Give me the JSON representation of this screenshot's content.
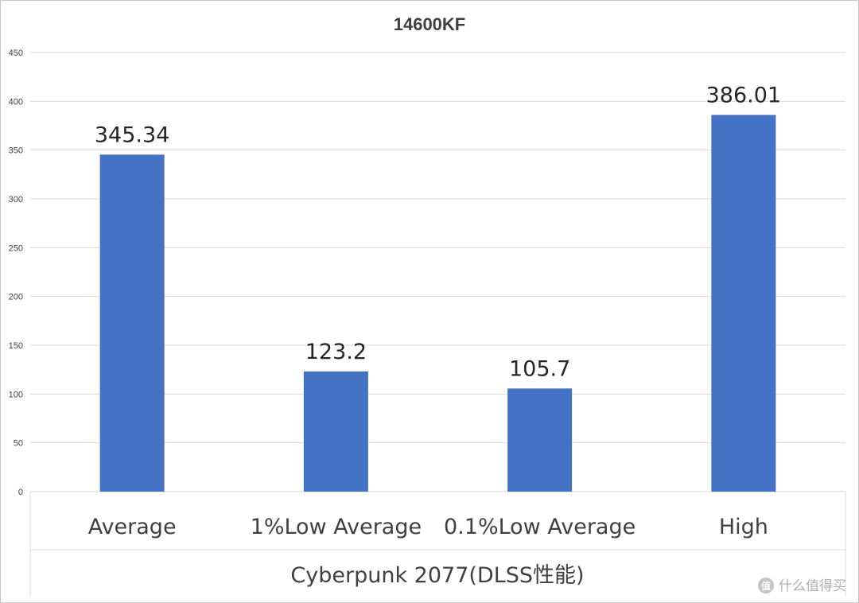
{
  "chart_data": {
    "type": "bar",
    "title": "14600KF",
    "categories": [
      "Average",
      "1%Low Average",
      "0.1%Low Average",
      "High"
    ],
    "values": [
      345.34,
      123.2,
      105.7,
      386.01
    ],
    "value_labels": [
      "345.34",
      "123.2",
      "105.7",
      "386.01"
    ],
    "xlabel": "Cyberpunk 2077(DLSS性能)",
    "ylabel": "",
    "ylim": [
      0,
      450
    ],
    "yticks": [
      0,
      50,
      100,
      150,
      200,
      250,
      300,
      350,
      400,
      450
    ],
    "grid": true,
    "legend": "none",
    "bar_color": "#4472c4",
    "grid_color": "#d9d9d9"
  },
  "watermark": {
    "text": "什么值得买",
    "icon": "smzdm-logo-icon"
  }
}
